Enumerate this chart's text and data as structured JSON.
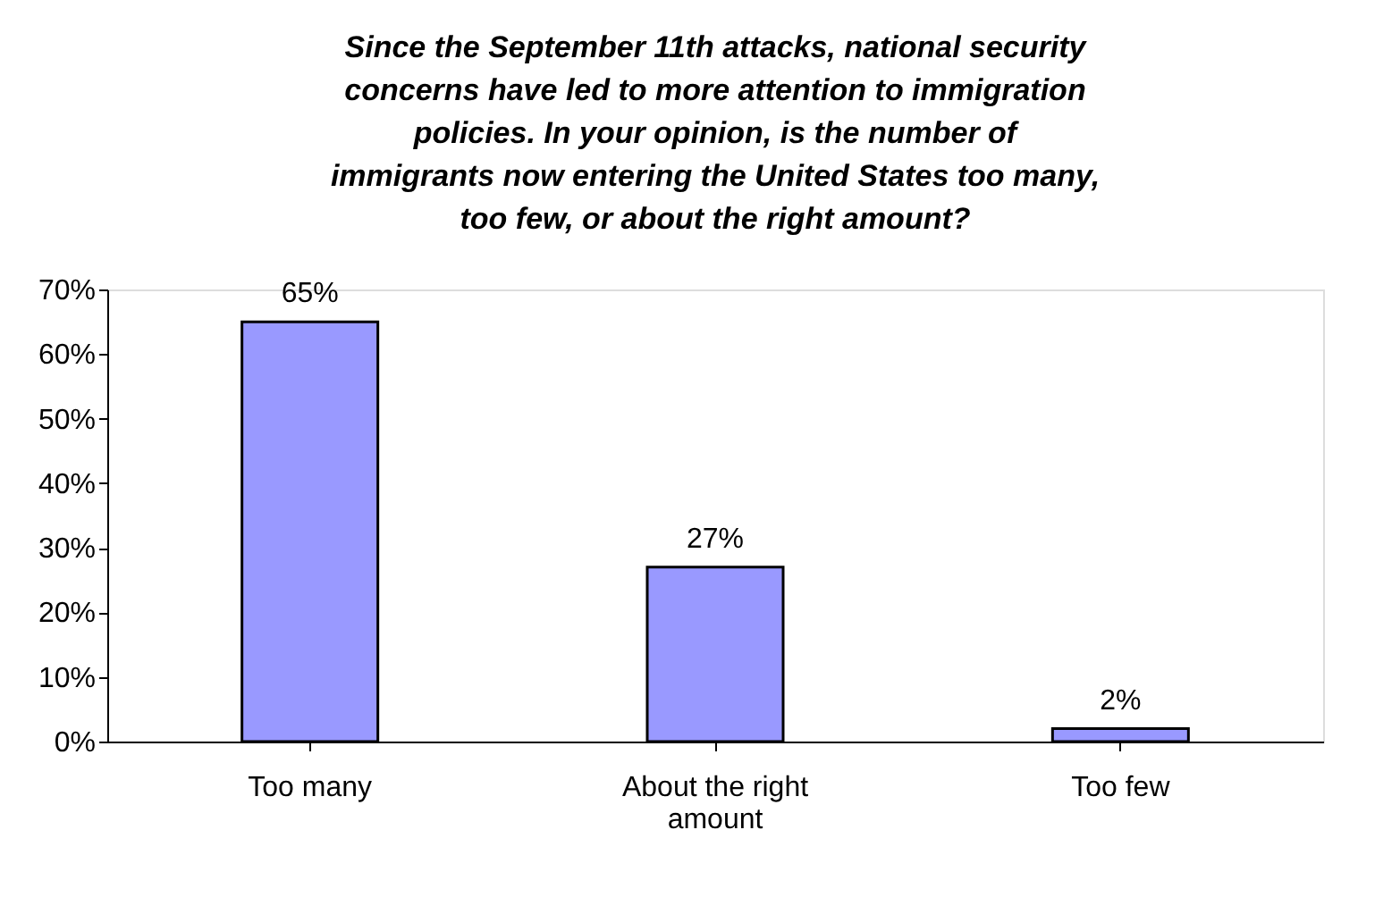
{
  "chart_data": {
    "type": "bar",
    "title": "Since the September 11th attacks, national security concerns have led to more attention to immigration policies. In your opinion, is the number of immigrants now entering the United States too many, too few, or about the right amount?",
    "categories": [
      "Too many",
      "About the right amount",
      "Too few"
    ],
    "values": [
      65,
      27,
      2
    ],
    "value_labels": [
      "65%",
      "27%",
      "2%"
    ],
    "color": "#9999ff",
    "ylim": [
      0,
      70
    ],
    "yticks": [
      {
        "value": 0,
        "label": "0%"
      },
      {
        "value": 10,
        "label": "10%"
      },
      {
        "value": 20,
        "label": "20%"
      },
      {
        "value": 30,
        "label": "30%"
      },
      {
        "value": 40,
        "label": "40%"
      },
      {
        "value": 50,
        "label": "50%"
      },
      {
        "value": 60,
        "label": "60%"
      },
      {
        "value": 70,
        "label": "70%"
      }
    ],
    "grid": false
  }
}
